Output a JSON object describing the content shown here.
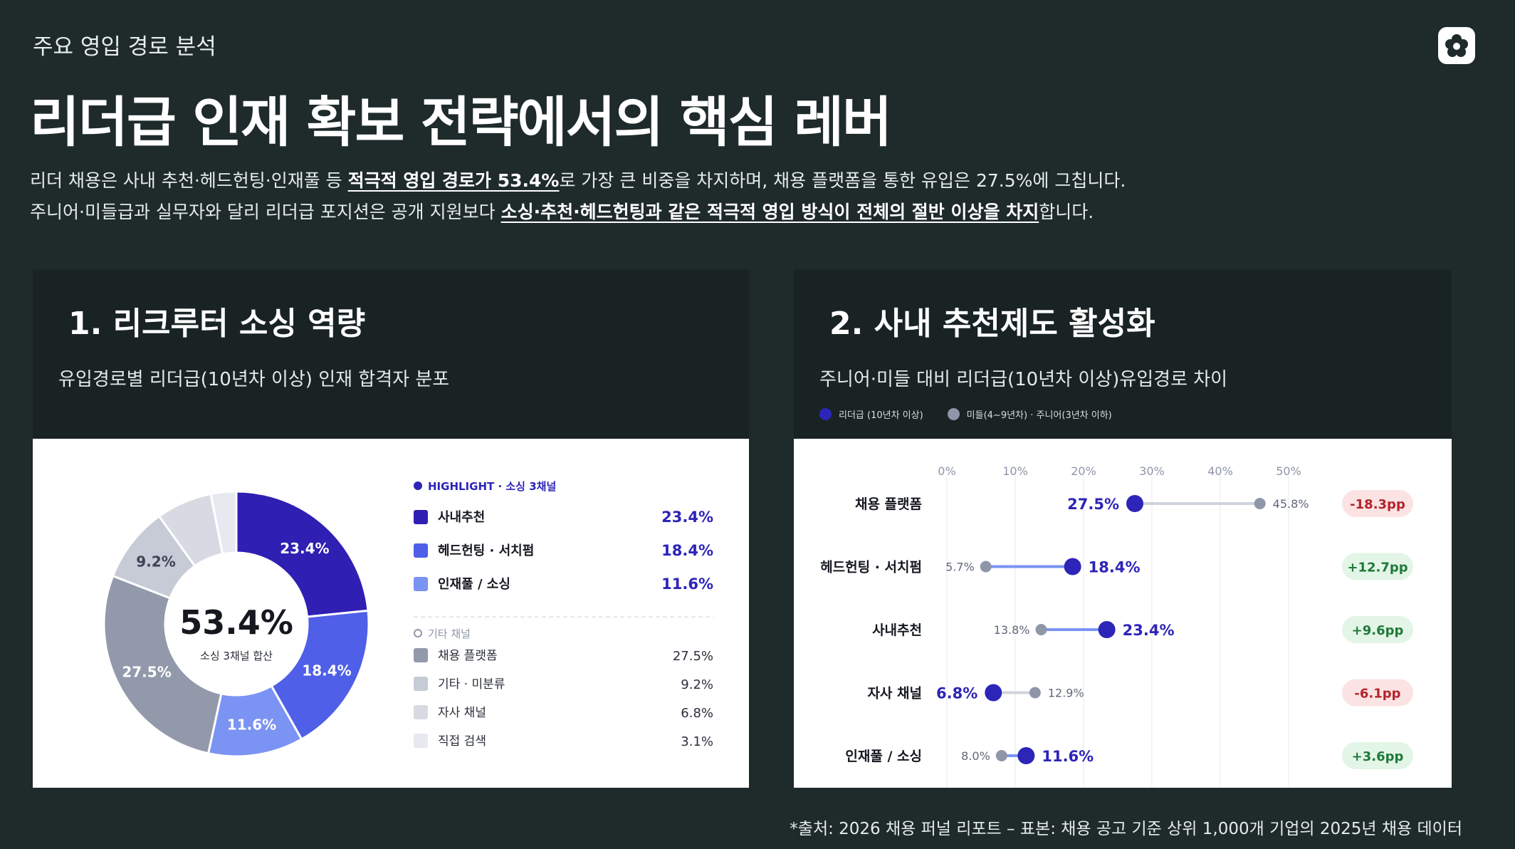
{
  "header": {
    "eyebrow": "주요 영입 경로 분석",
    "title": "리더급 인재 확보 전략에서의 핵심 레버",
    "desc1_a": "리더 채용은 사내 추천·헤드헌팅·인재풀 등 ",
    "desc1_b": "적극적 영입 경로가 53.4%",
    "desc1_c": "로 가장 큰 비중을 차지하며, 채용 플랫폼을 통한 유입은 27.5%에 그칩니다.",
    "desc2_a": "주니어·미들급과 실무자와 달리 리더급 포지션은 공개 지원보다 ",
    "desc2_b": "소싱·추천·헤드헌팅과 같은 적극적 영입 방식이 전체의 절반 이상을 차지",
    "desc2_c": "합니다."
  },
  "logo_icon": "flower-logo-icon",
  "panel1": {
    "title": "1.  리크루터 소싱 역량",
    "subtitle": "유입경로별 리더급(10년차 이상) 인재 합격자 분포"
  },
  "panel2": {
    "title": "2.  사내 추천제도 활성화",
    "subtitle": "주니어·미들 대비 리더급(10년차 이상)유입경로 차이",
    "legend_leader": "리더급 (10년차 이상)",
    "legend_junior": "미들(4~9년차) · 주니어(3년차 이하)",
    "leader_color": "#2d24b8",
    "junior_color": "#8e96a8"
  },
  "footer": "*출처: 2026 채용 퍼널 리포트 – 표본: 채용 공고 기준 상위 1,000개 기업의 2025년 채용 데이터",
  "chart_data": [
    {
      "type": "pie",
      "center_value": "53.4%",
      "center_label": "소싱 3채널 합산",
      "highlight_header": "HIGHLIGHT · 소싱 3채널",
      "other_header": "기타 채널",
      "slices": [
        {
          "label": "사내추천",
          "value": 23.4,
          "display": "23.4%",
          "color": "#2f1fb3",
          "group": "highlight"
        },
        {
          "label": "헤드헌팅 · 서치펌",
          "value": 18.4,
          "display": "18.4%",
          "color": "#4f5fe8",
          "group": "highlight"
        },
        {
          "label": "인재풀 / 소싱",
          "value": 11.6,
          "display": "11.6%",
          "color": "#7b93f2",
          "group": "highlight"
        },
        {
          "label": "채용 플랫폼",
          "value": 27.5,
          "display": "27.5%",
          "color": "#9299ab",
          "group": "other"
        },
        {
          "label": "기타 · 미분류",
          "value": 9.2,
          "display": "9.2%",
          "color": "#c7cbd6",
          "group": "other"
        },
        {
          "label": "자사 채널",
          "value": 6.8,
          "display": "6.8%",
          "color": "#d7dae2",
          "group": "other"
        },
        {
          "label": "직접 검색",
          "value": 3.1,
          "display": "3.1%",
          "color": "#e6e9ef",
          "group": "other"
        }
      ]
    },
    {
      "type": "scatter",
      "x_ticks": [
        "0%",
        "10%",
        "20%",
        "30%",
        "40%",
        "50%"
      ],
      "xlim": [
        0,
        50
      ],
      "rows": [
        {
          "label": "채용 플랫폼",
          "leader": 27.5,
          "leader_text": "27.5%",
          "junior": 45.8,
          "junior_text": "45.8%",
          "diff": "-18.3pp",
          "sign": "neg"
        },
        {
          "label": "헤드헌팅 · 서치펌",
          "leader": 18.4,
          "leader_text": "18.4%",
          "junior": 5.7,
          "junior_text": "5.7%",
          "diff": "+12.7pp",
          "sign": "pos"
        },
        {
          "label": "사내추천",
          "leader": 23.4,
          "leader_text": "23.4%",
          "junior": 13.8,
          "junior_text": "13.8%",
          "diff": "+9.6pp",
          "sign": "pos"
        },
        {
          "label": "자사 채널",
          "leader": 6.8,
          "leader_text": "6.8%",
          "junior": 12.9,
          "junior_text": "12.9%",
          "diff": "-6.1pp",
          "sign": "neg"
        },
        {
          "label": "인재풀 / 소싱",
          "leader": 11.6,
          "leader_text": "11.6%",
          "junior": 8.0,
          "junior_text": "8.0%",
          "diff": "+3.6pp",
          "sign": "pos"
        }
      ]
    }
  ]
}
